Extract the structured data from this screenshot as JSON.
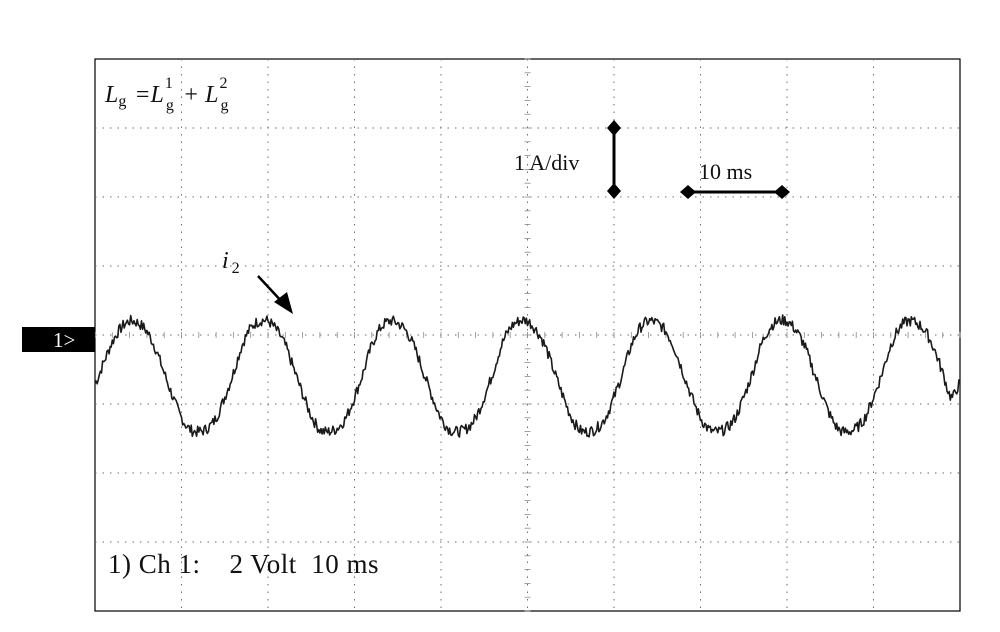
{
  "chart_data": {
    "type": "line",
    "title": "",
    "xlabel": "",
    "ylabel": "",
    "grid": true,
    "grid_divisions": {
      "x": 10,
      "y": 8
    },
    "xlim": [
      0,
      100
    ],
    "ylim": [
      -3.25,
      4.75
    ],
    "x_unit": "ms",
    "y_unit": "A",
    "series": [
      {
        "name": "i2",
        "x": [
          0,
          1,
          2,
          3,
          4,
          5,
          6,
          7,
          8,
          9,
          10,
          11,
          12,
          13,
          14,
          15,
          16,
          17,
          18,
          19,
          20,
          21,
          22,
          23,
          24,
          25,
          26,
          27,
          28,
          29,
          30,
          31,
          32,
          33,
          34,
          35,
          36,
          37,
          38,
          39,
          40,
          41,
          42,
          43,
          44,
          45,
          46,
          47,
          48,
          49,
          50,
          51,
          52,
          53,
          54,
          55,
          56,
          57,
          58,
          59,
          60,
          61,
          62,
          63,
          64,
          65,
          66,
          67,
          68,
          69,
          70,
          71,
          72,
          73,
          74,
          75,
          76,
          77,
          78,
          79,
          80,
          81,
          82,
          83,
          84,
          85,
          86,
          87,
          88,
          89,
          90,
          91,
          92,
          93,
          94,
          95,
          96,
          97,
          98,
          99,
          100
        ],
        "y": [
          0.05,
          0.35,
          0.65,
          0.85,
          0.95,
          0.92,
          0.8,
          0.55,
          0.2,
          -0.15,
          -0.45,
          -0.62,
          -0.65,
          -0.6,
          -0.45,
          -0.15,
          0.2,
          0.6,
          0.85,
          0.95,
          0.95,
          0.82,
          0.6,
          0.25,
          -0.1,
          -0.42,
          -0.62,
          -0.65,
          -0.6,
          -0.45,
          -0.15,
          0.2,
          0.6,
          0.85,
          0.95,
          0.92,
          0.8,
          0.55,
          0.2,
          -0.15,
          -0.45,
          -0.62,
          -0.65,
          -0.6,
          -0.45,
          -0.15,
          0.2,
          0.6,
          0.85,
          0.95,
          0.95,
          0.82,
          0.6,
          0.25,
          -0.1,
          -0.42,
          -0.62,
          -0.65,
          -0.6,
          -0.45,
          -0.15,
          0.2,
          0.6,
          0.85,
          0.95,
          0.92,
          0.8,
          0.55,
          0.2,
          -0.15,
          -0.45,
          -0.62,
          -0.65,
          -0.6,
          -0.45,
          -0.15,
          0.2,
          0.6,
          0.85,
          0.95,
          0.95,
          0.82,
          0.6,
          0.25,
          -0.1,
          -0.42,
          -0.62,
          -0.65,
          -0.6,
          -0.45,
          -0.15,
          0.2,
          0.6,
          0.85,
          0.95,
          0.92,
          0.8,
          0.55,
          0.2,
          -0.15,
          0.05
        ]
      }
    ]
  },
  "formula": {
    "lhs": "L",
    "lhs_sub": "g",
    "eq": "=L",
    "t1_sub": "g",
    "t1_sup": "1",
    "plus": "+ L",
    "t2_sub": "g",
    "t2_sup": "2"
  },
  "current_scale_label": "1 A/div",
  "time_scale_label": "10 ms",
  "trace_label": {
    "main": "i",
    "sub": "2"
  },
  "channel_marker": "1>",
  "channel_info": "1) Ch 1:    2 Volt  10 ms"
}
